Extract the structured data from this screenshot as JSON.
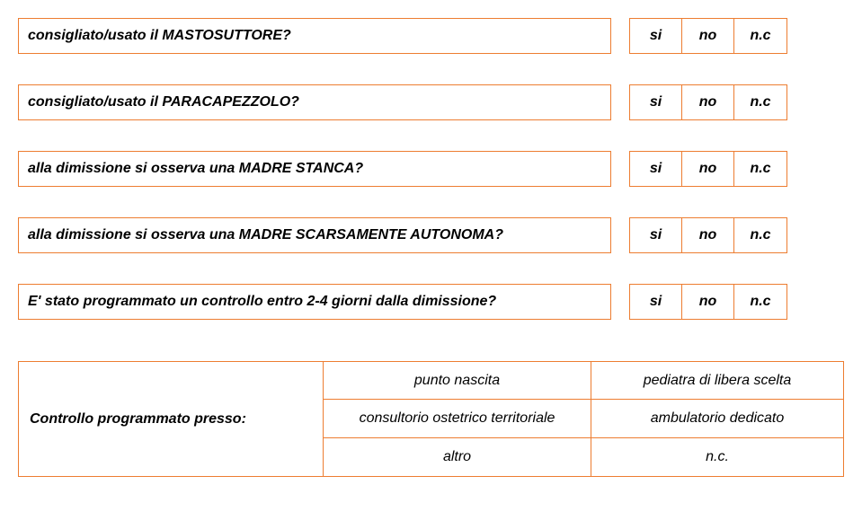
{
  "font": {
    "questionSize": 15,
    "answerSize": 15,
    "controlSize": 15
  },
  "colors": {
    "border": "#ed7d31",
    "bg": "#ffffff",
    "text": "#000000"
  },
  "answers": {
    "si": "si",
    "no": "no",
    "nc": "n.c"
  },
  "questions": [
    {
      "text": "consigliato/usato il MASTOSUTTORE?"
    },
    {
      "text": "consigliato/usato il PARACAPEZZOLO?"
    },
    {
      "text": "alla dimissione si osserva una MADRE STANCA?"
    },
    {
      "text": "alla dimissione si osserva una MADRE SCARSAMENTE AUTONOMA?"
    },
    {
      "text": "E' stato programmato un controllo entro 2-4 giorni dalla dimissione?"
    }
  ],
  "control": {
    "label": "Controllo programmato presso:",
    "rows": [
      [
        "punto nascita",
        "pediatra di libera scelta"
      ],
      [
        "consultorio ostetrico territoriale",
        "ambulatorio dedicato"
      ],
      [
        "altro",
        "n.c."
      ]
    ]
  }
}
